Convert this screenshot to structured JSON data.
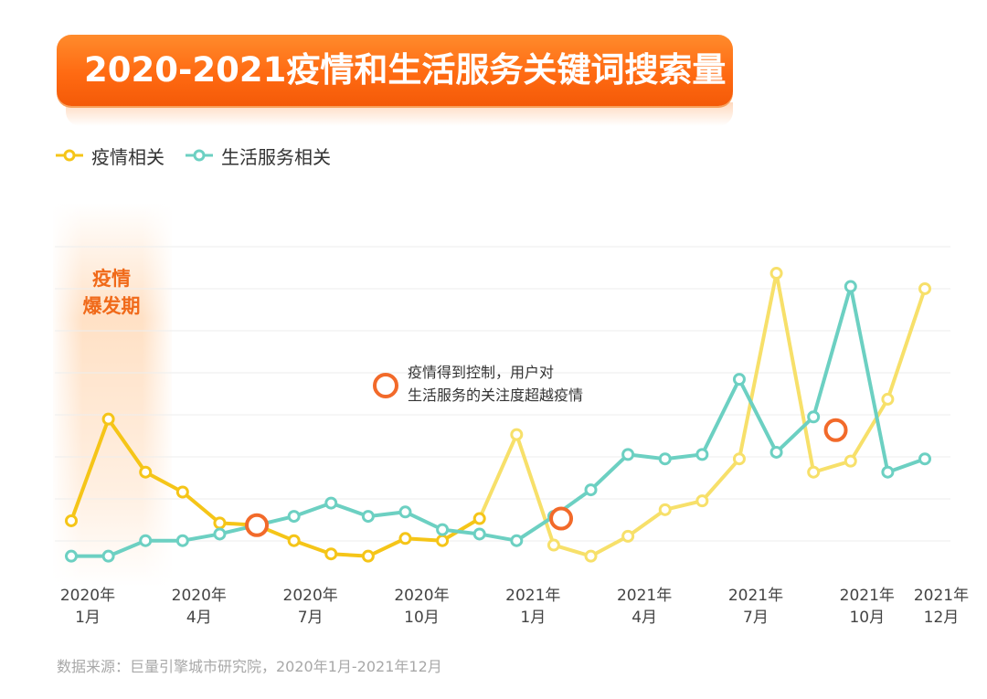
{
  "title": "2020-2021疫情和生活服务关键词搜索量",
  "legend": {
    "epidemic": "疫情相关",
    "life": "生活服务相关"
  },
  "outbreak_label_line1": "疫情",
  "outbreak_label_line2": "爆发期",
  "annotation": {
    "line1": "疫情得到控制，用户对",
    "line2": "生活服务的关注度超越疫情"
  },
  "source": "数据来源：巨量引擎城市研究院，2020年1月-2021年12月",
  "colors": {
    "epidemic": "#f5c518",
    "epidemic_light": "#f7e06a",
    "life": "#6cd0c2",
    "crossover": "#f26a2a",
    "title_bar": "#ff6a12"
  },
  "chart_data": {
    "type": "line",
    "x": [
      "2020-01",
      "2020-02",
      "2020-03",
      "2020-04",
      "2020-05",
      "2020-06",
      "2020-07",
      "2020-08",
      "2020-09",
      "2020-10",
      "2020-11",
      "2020-12",
      "2021-01",
      "2021-02",
      "2021-03",
      "2021-04",
      "2021-05",
      "2021-06",
      "2021-07",
      "2021-08",
      "2021-09",
      "2021-10",
      "2021-11",
      "2021-12"
    ],
    "x_tick_labels": [
      {
        "index": 0,
        "line1": "2020年",
        "line2": "1月"
      },
      {
        "index": 3,
        "line1": "2020年",
        "line2": "4月"
      },
      {
        "index": 6,
        "line1": "2020年",
        "line2": "7月"
      },
      {
        "index": 9,
        "line1": "2020年",
        "line2": "10月"
      },
      {
        "index": 12,
        "line1": "2021年",
        "line2": "1月"
      },
      {
        "index": 15,
        "line1": "2021年",
        "line2": "4月"
      },
      {
        "index": 18,
        "line1": "2021年",
        "line2": "7月"
      },
      {
        "index": 21,
        "line1": "2021年",
        "line2": "10月"
      },
      {
        "index": 23,
        "line1": "2021年",
        "line2": "12月"
      }
    ],
    "y_axis_labels": "none",
    "grid": "horizontal",
    "legend_position": "top-left",
    "series": [
      {
        "name": "疫情相关",
        "key": "epidemic",
        "values": [
          12,
          35,
          23,
          18.5,
          11.5,
          11,
          7.5,
          4.5,
          4,
          8,
          7.5,
          12.5,
          31.5,
          6.5,
          4,
          8.5,
          14.5,
          16.5,
          26,
          68,
          23,
          25.5,
          39.5,
          64.5
        ]
      },
      {
        "name": "生活服务相关",
        "key": "life",
        "values": [
          4,
          4,
          7.5,
          7.5,
          9,
          11,
          13,
          16,
          13,
          14,
          10,
          9,
          7.5,
          13,
          19,
          27,
          26,
          27,
          44,
          27.5,
          35.5,
          65,
          23,
          26
        ]
      }
    ],
    "crossover_markers": [
      {
        "x_index": 5,
        "value": 11
      },
      {
        "x_index": 13.2,
        "value": 12.5
      },
      {
        "x_index": 20.6,
        "value": 32.5
      }
    ],
    "highlight_period": {
      "from_index": 0,
      "to_index": 2,
      "label": "疫情爆发期"
    }
  }
}
